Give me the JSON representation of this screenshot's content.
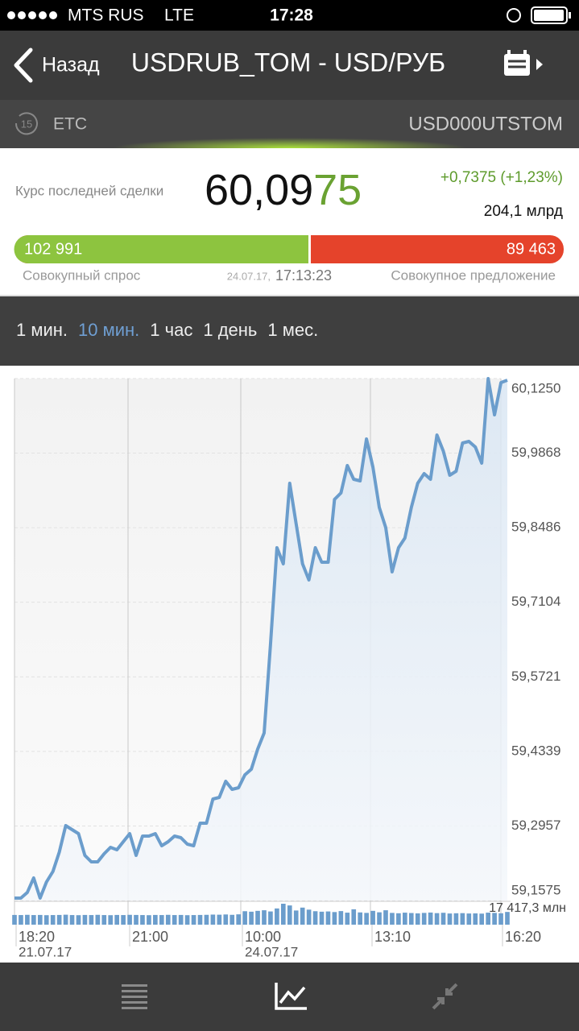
{
  "status_bar": {
    "carrier": "MTS RUS",
    "network": "LTE",
    "time": "17:28"
  },
  "nav": {
    "back": "Назад",
    "title": "USDRUB_TOM - USD/РУБ"
  },
  "info": {
    "delay": "15",
    "market": "ETC",
    "code": "USD000UTSTOM"
  },
  "quote": {
    "label": "Курс последней сделки",
    "price_main": "60,09",
    "price_tail": "75",
    "change": "+0,7375 (+1,23%)",
    "volume": "204,1 млрд",
    "bid": {
      "value": 102991,
      "label": "102 991"
    },
    "ask": {
      "value": 89463,
      "label": "89 463"
    },
    "bid_caption": "Совокупный спрос",
    "ask_caption": "Совокупное предложение",
    "date": "24.07.17,",
    "time": "17:13:23"
  },
  "tabs": {
    "items": [
      "1 мин.",
      "10 мин.",
      "1 час",
      "1 день",
      "1 мес."
    ],
    "active": 1
  },
  "chart_data": {
    "type": "line",
    "color": "#6b9dcc",
    "x_labels": [
      {
        "time": "18:20",
        "date": "21.07.17"
      },
      {
        "time": "21:00"
      },
      {
        "time": "10:00",
        "date": "24.07.17"
      },
      {
        "time": "13:10"
      },
      {
        "time": "16:20"
      }
    ],
    "values": [
      59.162,
      59.162,
      59.1724,
      59.1993,
      59.162,
      59.1918,
      59.2112,
      59.2471,
      59.2963,
      59.2889,
      59.2814,
      59.2411,
      59.2292,
      59.2292,
      59.2441,
      59.256,
      59.2516,
      59.2665,
      59.2814,
      59.2411,
      59.2769,
      59.2769,
      59.2814,
      59.259,
      59.2665,
      59.2769,
      59.274,
      59.262,
      59.259,
      59.3008,
      59.3008,
      59.3456,
      59.3486,
      59.3785,
      59.3635,
      59.3665,
      59.3904,
      59.4008,
      59.4382,
      59.468,
      59.6323,
      59.8114,
      59.7816,
      59.9309,
      59.8562,
      59.7816,
      59.7517,
      59.8114,
      59.7846,
      59.7846,
      59.901,
      59.913,
      59.9637,
      59.9384,
      59.9354,
      60.013,
      59.9607,
      59.8861,
      59.8488,
      59.7666,
      59.8114,
      59.8294,
      59.8861,
      59.9309,
      59.9488,
      59.9384,
      60.0204,
      59.9906,
      59.9458,
      59.9533,
      60.0055,
      60.0085,
      59.9981,
      59.9682,
      60.125,
      60.0578,
      60.1175,
      60.122
    ],
    "ylim": [
      59.1575,
      60.125
    ],
    "yticks": [
      {
        "value": 60.125,
        "label": "60,1250"
      },
      {
        "value": 59.9868,
        "label": "59,9868"
      },
      {
        "value": 59.8486,
        "label": "59,8486"
      },
      {
        "value": 59.7104,
        "label": "59,7104"
      },
      {
        "value": 59.5721,
        "label": "59,5721"
      },
      {
        "value": 59.4339,
        "label": "59,4339"
      },
      {
        "value": 59.2957,
        "label": "59,2957"
      },
      {
        "value": 59.1575,
        "label": "59,1575"
      }
    ],
    "volume": [
      8100,
      8000,
      8200,
      8000,
      8100,
      7900,
      8000,
      8100,
      8300,
      8000,
      7900,
      8100,
      8000,
      8200,
      8000,
      7900,
      8100,
      8000,
      8200,
      8100,
      8000,
      7900,
      8100,
      8000,
      8200,
      8000,
      8100,
      7900,
      8000,
      8100,
      8200,
      8400,
      8300,
      8500,
      8200,
      8600,
      11200,
      10800,
      11500,
      12000,
      11000,
      13500,
      17417.3,
      16000,
      11800,
      14200,
      12500,
      11200,
      10800,
      11000,
      10500,
      11300,
      10000,
      12800,
      10200,
      9800,
      11500,
      10300,
      12000,
      9800,
      9500,
      10000,
      9700,
      9400,
      9800,
      10100,
      9600,
      9900,
      9300,
      9500,
      9600,
      9300,
      9400,
      9200,
      10000,
      9800,
      9500,
      10600
    ],
    "volume_ylim": [
      0,
      17417.3
    ],
    "volume_ticks": [
      {
        "value": 17417.3,
        "label": "17 417,3 млн"
      }
    ]
  }
}
